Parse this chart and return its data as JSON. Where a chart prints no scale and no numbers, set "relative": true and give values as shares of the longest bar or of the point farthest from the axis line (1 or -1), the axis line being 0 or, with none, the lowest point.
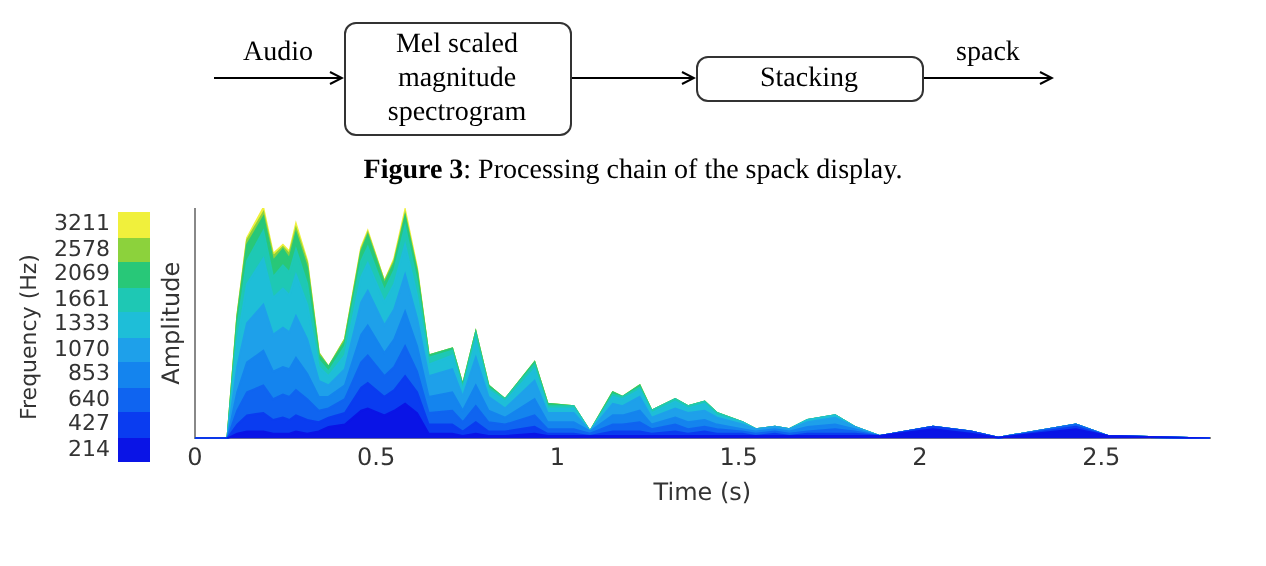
{
  "chart_data": {
    "type": "area",
    "stacked": true,
    "relative": true,
    "xlabel": "Time (s)",
    "ylabel": "Amplitude",
    "legend_title": "Frequency (Hz)",
    "legend": "left",
    "grid": false,
    "annotations": [
      "Audio",
      "Mel scaled magnitude spectrogram",
      "Stacking",
      "spack",
      "Figure 3: Processing chain of the spack display."
    ],
    "xlim": [
      0,
      2.8
    ],
    "xticks": [
      0,
      0.5,
      1,
      1.5,
      2,
      2.5
    ],
    "x": [
      0,
      0.09,
      0.117,
      0.144,
      0.189,
      0.216,
      0.243,
      0.261,
      0.279,
      0.31,
      0.342,
      0.369,
      0.414,
      0.459,
      0.477,
      0.523,
      0.55,
      0.58,
      0.613,
      0.645,
      0.71,
      0.739,
      0.775,
      0.81,
      0.856,
      0.937,
      0.973,
      1.045,
      1.09,
      1.153,
      1.18,
      1.227,
      1.26,
      1.325,
      1.36,
      1.406,
      1.44,
      1.51,
      1.547,
      1.6,
      1.64,
      1.69,
      1.766,
      1.82,
      1.89,
      2.036,
      2.14,
      2.216,
      2.43,
      2.52,
      2.8
    ],
    "series": [
      {
        "name": "214",
        "color": "#0a14e6",
        "values": [
          0,
          0,
          0.02,
          0.03,
          0.03,
          0.02,
          0.02,
          0.02,
          0.03,
          0.02,
          0.03,
          0.05,
          0.06,
          0.12,
          0.13,
          0.1,
          0.12,
          0.15,
          0.11,
          0.02,
          0.02,
          0.01,
          0.02,
          0.01,
          0.01,
          0.02,
          0.01,
          0.01,
          0.01,
          0.01,
          0.01,
          0.01,
          0.01,
          0.01,
          0.01,
          0.01,
          0.01,
          0.01,
          0.01,
          0.01,
          0.01,
          0.01,
          0.01,
          0.01,
          0.01,
          0.04,
          0.02,
          0.003,
          0.04,
          0.01,
          0
        ]
      },
      {
        "name": "427",
        "color": "#0a3cf0",
        "values": [
          0,
          0,
          0.04,
          0.07,
          0.08,
          0.06,
          0.07,
          0.06,
          0.07,
          0.06,
          0.04,
          0.04,
          0.05,
          0.1,
          0.11,
          0.08,
          0.09,
          0.12,
          0.09,
          0.04,
          0.04,
          0.02,
          0.05,
          0.02,
          0.02,
          0.03,
          0.01,
          0.01,
          0,
          0.02,
          0.02,
          0.02,
          0.01,
          0.02,
          0.01,
          0.02,
          0.01,
          0.01,
          0,
          0.01,
          0,
          0.01,
          0.01,
          0.01,
          0,
          0.01,
          0.01,
          0,
          0.01,
          0,
          0
        ]
      },
      {
        "name": "640",
        "color": "#0f64f0",
        "values": [
          0,
          0,
          0.06,
          0.1,
          0.12,
          0.09,
          0.1,
          0.1,
          0.11,
          0.09,
          0.05,
          0.04,
          0.06,
          0.11,
          0.12,
          0.09,
          0.1,
          0.13,
          0.09,
          0.05,
          0.06,
          0.04,
          0.07,
          0.04,
          0.03,
          0.05,
          0.02,
          0.02,
          0.01,
          0.03,
          0.03,
          0.04,
          0.02,
          0.03,
          0.02,
          0.02,
          0.02,
          0.01,
          0.01,
          0.01,
          0.01,
          0.01,
          0.02,
          0.01,
          0,
          0,
          0,
          0,
          0.01,
          0,
          0
        ]
      },
      {
        "name": "853",
        "color": "#1484ee",
        "values": [
          0,
          0,
          0.08,
          0.13,
          0.15,
          0.12,
          0.12,
          0.12,
          0.14,
          0.11,
          0.06,
          0.05,
          0.06,
          0.12,
          0.13,
          0.1,
          0.12,
          0.15,
          0.11,
          0.07,
          0.08,
          0.05,
          0.09,
          0.05,
          0.03,
          0.07,
          0.03,
          0.03,
          0.01,
          0.04,
          0.04,
          0.05,
          0.02,
          0.03,
          0.03,
          0.03,
          0.02,
          0.01,
          0.01,
          0.01,
          0.01,
          0.02,
          0.02,
          0.01,
          0,
          0,
          0,
          0,
          0,
          0,
          0
        ]
      },
      {
        "name": "1070",
        "color": "#1ea0ea",
        "values": [
          0,
          0,
          0.11,
          0.17,
          0.2,
          0.16,
          0.17,
          0.16,
          0.18,
          0.15,
          0.07,
          0.05,
          0.07,
          0.14,
          0.15,
          0.12,
          0.13,
          0.16,
          0.12,
          0.09,
          0.1,
          0.06,
          0.12,
          0.06,
          0.04,
          0.08,
          0.04,
          0.04,
          0,
          0.05,
          0.04,
          0.06,
          0.03,
          0.04,
          0.04,
          0.04,
          0.03,
          0.02,
          0.01,
          0.01,
          0.01,
          0.02,
          0.03,
          0.01,
          0,
          0,
          0,
          0,
          0,
          0,
          0
        ]
      },
      {
        "name": "1333",
        "color": "#1ebed8",
        "values": [
          0,
          0,
          0.11,
          0.17,
          0.2,
          0.16,
          0.17,
          0.16,
          0.18,
          0.15,
          0.06,
          0.04,
          0.06,
          0.11,
          0.12,
          0.1,
          0.11,
          0.13,
          0.1,
          0.05,
          0.06,
          0.03,
          0.07,
          0.03,
          0.03,
          0.05,
          0.02,
          0.02,
          0,
          0.03,
          0.03,
          0.03,
          0.02,
          0.03,
          0.02,
          0.03,
          0.01,
          0.01,
          0,
          0,
          0,
          0.01,
          0.01,
          0,
          0,
          0,
          0,
          0,
          0,
          0,
          0
        ]
      },
      {
        "name": "1661",
        "color": "#1ec8b4",
        "values": [
          0,
          0,
          0.06,
          0.1,
          0.12,
          0.09,
          0.1,
          0.1,
          0.11,
          0.09,
          0.03,
          0.02,
          0.04,
          0.07,
          0.07,
          0.05,
          0.06,
          0.08,
          0.06,
          0.03,
          0.02,
          0.01,
          0.03,
          0.01,
          0.01,
          0.02,
          0.01,
          0.01,
          0,
          0.01,
          0.01,
          0.01,
          0.01,
          0.01,
          0.01,
          0.01,
          0.01,
          0,
          0,
          0,
          0,
          0,
          0,
          0,
          0,
          0,
          0,
          0,
          0,
          0,
          0
        ]
      },
      {
        "name": "2069",
        "color": "#28c878",
        "values": [
          0,
          0,
          0.04,
          0.07,
          0.06,
          0.07,
          0.07,
          0.06,
          0.07,
          0.07,
          0.02,
          0.02,
          0.02,
          0.04,
          0.05,
          0.03,
          0.03,
          0.04,
          0.04,
          0.01,
          0.01,
          0.01,
          0.01,
          0.01,
          0,
          0.01,
          0.01,
          0,
          0,
          0.01,
          0,
          0.01,
          0,
          0,
          0,
          0,
          0,
          0,
          0,
          0,
          0,
          0,
          0,
          0,
          0,
          0,
          0,
          0,
          0,
          0,
          0
        ]
      },
      {
        "name": "2578",
        "color": "#8cd23c",
        "values": [
          0,
          0,
          0.01,
          0.02,
          0.02,
          0.02,
          0.01,
          0.02,
          0.02,
          0.02,
          0.01,
          0,
          0.01,
          0.01,
          0.01,
          0.01,
          0.01,
          0.01,
          0.01,
          0,
          0,
          0,
          0,
          0,
          0,
          0,
          0,
          0,
          0,
          0,
          0,
          0,
          0,
          0,
          0,
          0,
          0,
          0,
          0,
          0,
          0,
          0,
          0,
          0,
          0,
          0,
          0,
          0,
          0,
          0,
          0
        ]
      },
      {
        "name": "3211",
        "color": "#f0f03c",
        "values": [
          0,
          0,
          0,
          0.01,
          0.02,
          0.01,
          0.01,
          0.01,
          0.02,
          0.01,
          0,
          0,
          0,
          0.01,
          0.01,
          0,
          0.01,
          0.02,
          0.01,
          0,
          0,
          0,
          0,
          0,
          0,
          0,
          0,
          0,
          0,
          0,
          0,
          0,
          0,
          0,
          0,
          0,
          0,
          0,
          0,
          0,
          0,
          0,
          0,
          0,
          0,
          0,
          0,
          0,
          0,
          0,
          0
        ]
      }
    ]
  }
}
